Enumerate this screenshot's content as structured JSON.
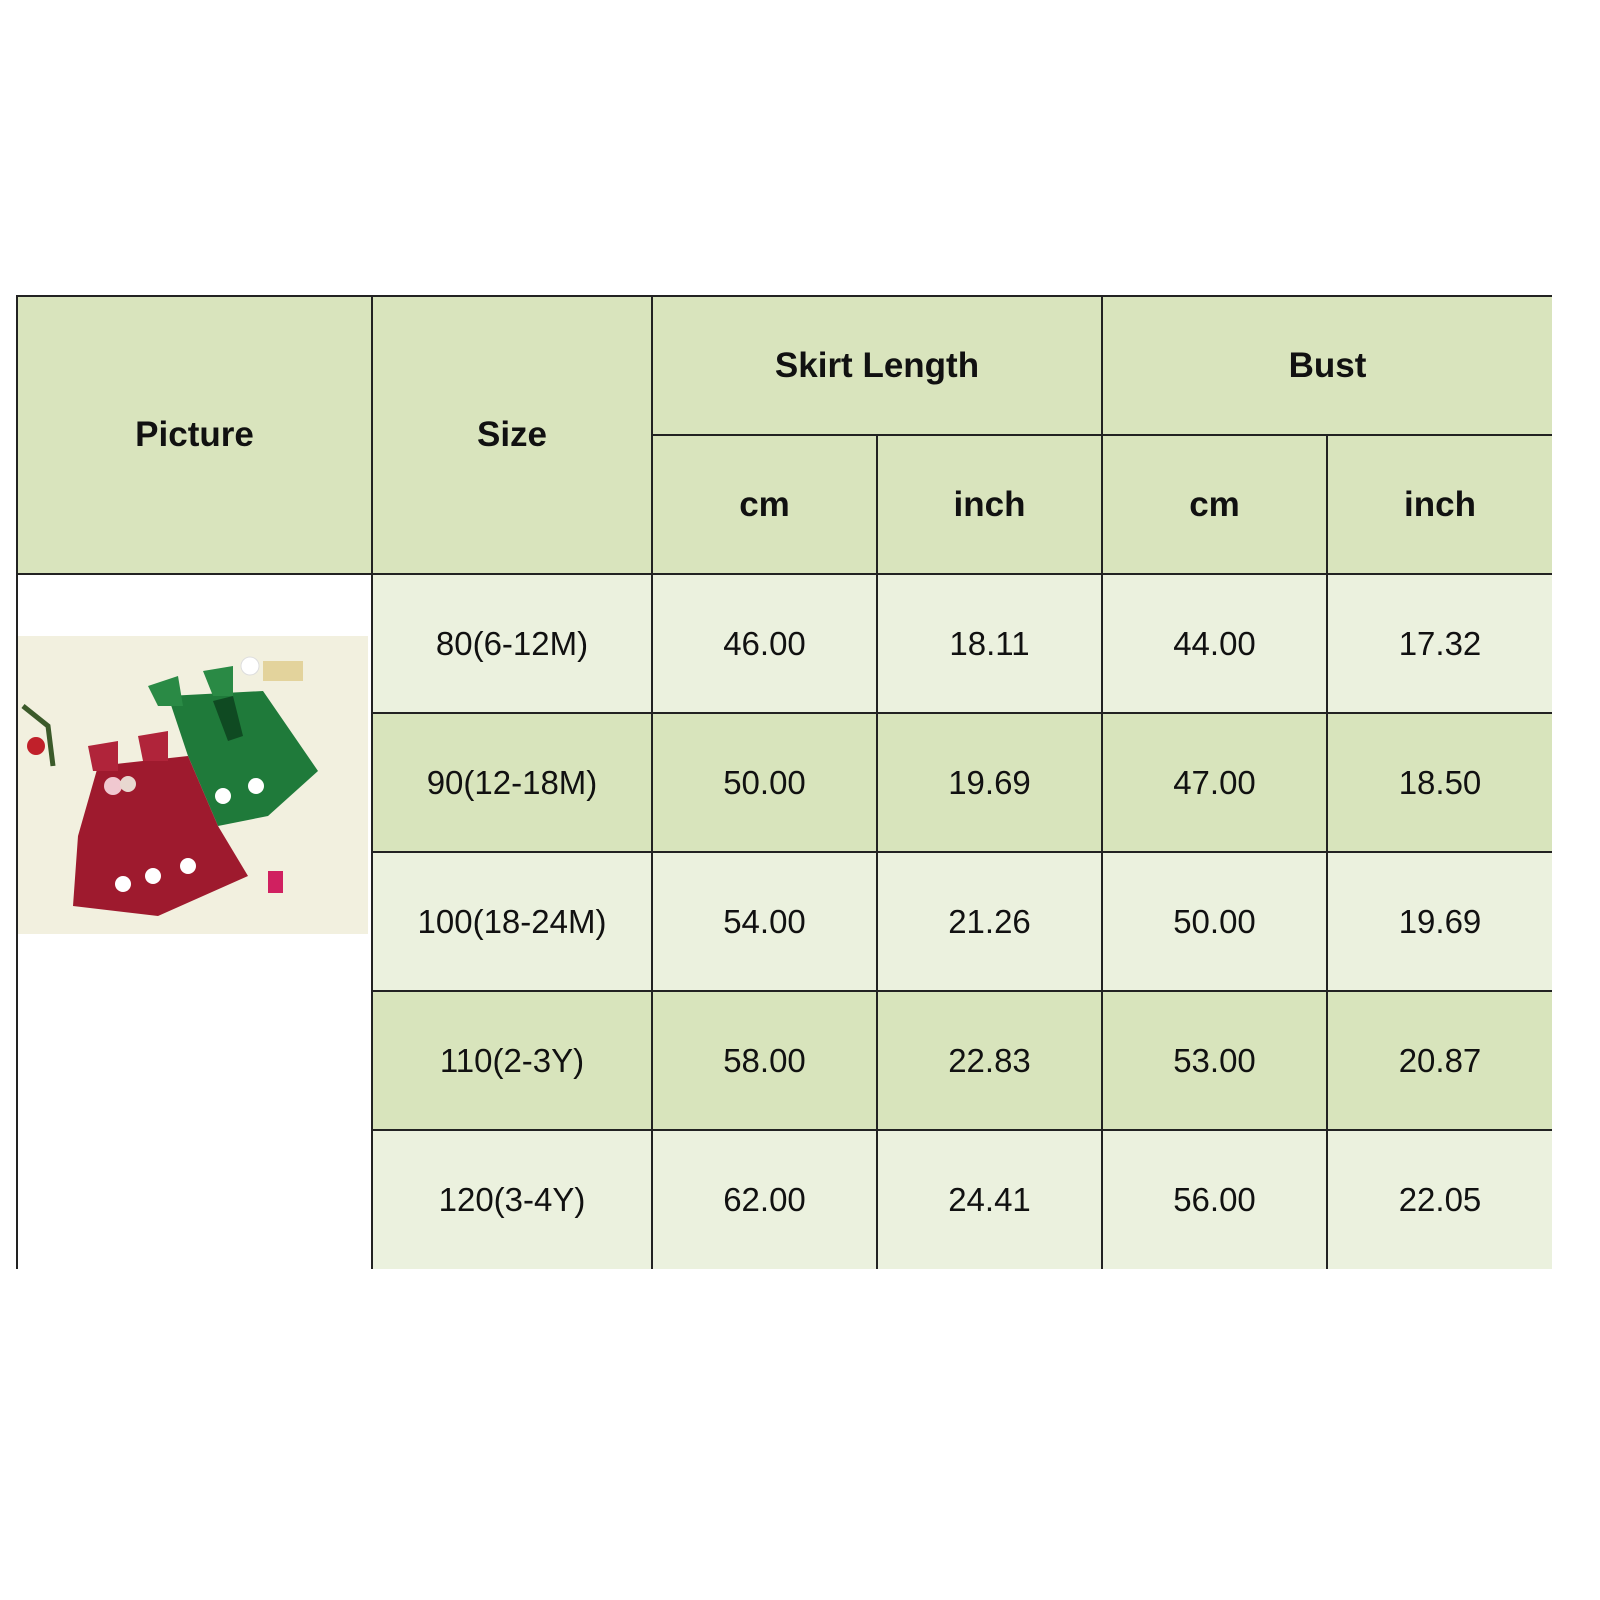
{
  "headers": {
    "picture": "Picture",
    "size": "Size",
    "skirt_length": "Skirt Length",
    "bust": "Bust",
    "sub": [
      "cm",
      "inch",
      "cm",
      "inch"
    ]
  },
  "rows": [
    {
      "size": "80(6-12M)",
      "values": [
        "46.00",
        "18.11",
        "44.00",
        "17.32"
      ]
    },
    {
      "size": "90(12-18M)",
      "values": [
        "50.00",
        "19.69",
        "47.00",
        "18.50"
      ]
    },
    {
      "size": "100(18-24M)",
      "values": [
        "54.00",
        "21.26",
        "50.00",
        "19.69"
      ]
    },
    {
      "size": "110(2-3Y)",
      "values": [
        "58.00",
        "22.83",
        "53.00",
        "20.87"
      ]
    },
    {
      "size": "120(3-4Y)",
      "values": [
        "62.00",
        "24.41",
        "56.00",
        "22.05"
      ]
    }
  ],
  "photo": {
    "subject": "red-and-green-tulle-dresses",
    "colors": {
      "red": "#9e1a2e",
      "green": "#1f7a3a",
      "background": "#f2f0df"
    }
  },
  "colors": {
    "header": "#d9e4bd",
    "row_light": "#ebf1de",
    "row_dark": "#d8e4bc"
  }
}
